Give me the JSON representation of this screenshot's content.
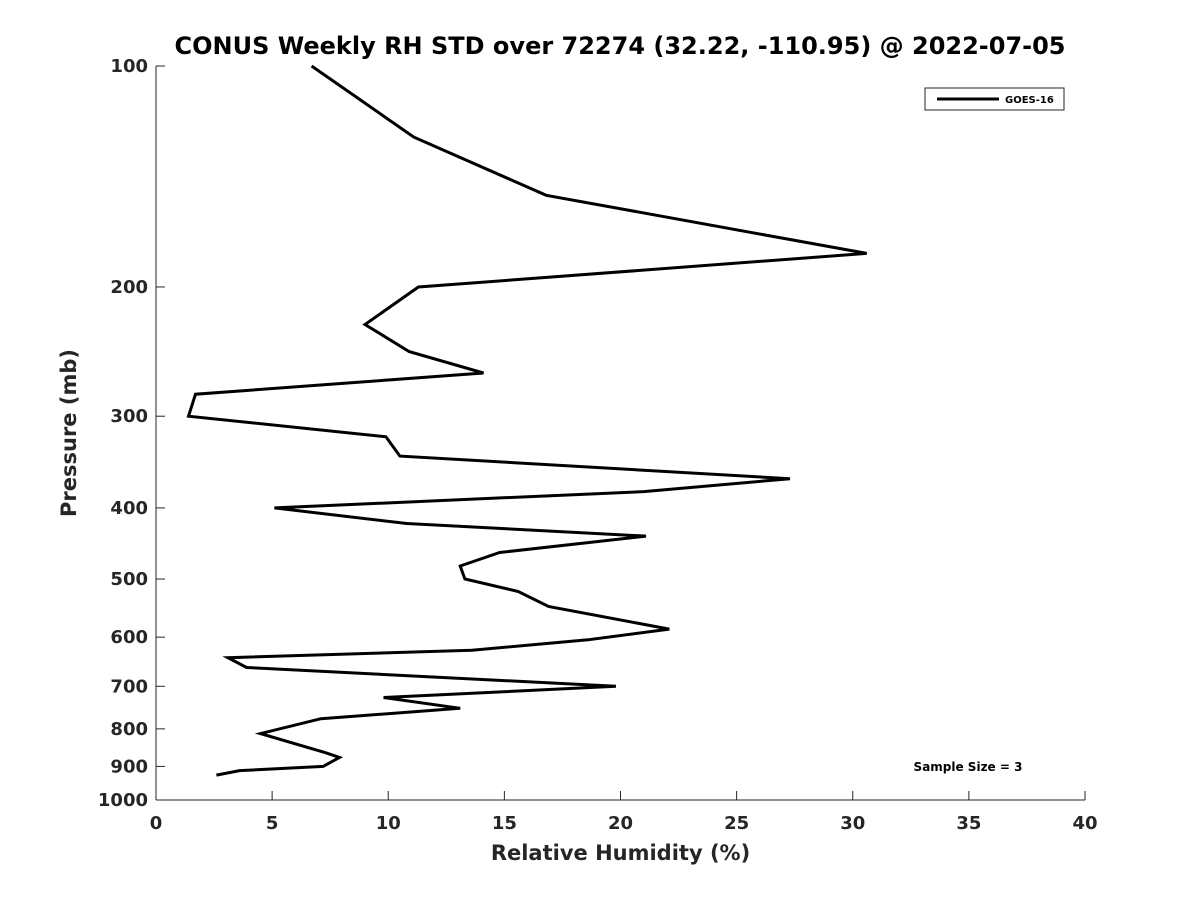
{
  "chart_data": {
    "type": "line",
    "title": "CONUS Weekly RH STD over 72274 (32.22, -110.95) @ 2022-07-05",
    "xlabel": "Relative Humidity (%)",
    "ylabel": "Pressure (mb)",
    "xlim": [
      0,
      40
    ],
    "ylim": [
      100,
      1000
    ],
    "yscale": "log",
    "y_reversed": true,
    "x_ticks": [
      0,
      5,
      10,
      15,
      20,
      25,
      30,
      35,
      40
    ],
    "y_ticks": [
      100,
      200,
      300,
      400,
      500,
      600,
      700,
      800,
      900,
      1000
    ],
    "grid": false,
    "legend": {
      "position": "top-right",
      "entries": [
        "GOES-16"
      ]
    },
    "annotations": [
      {
        "text": "Sample Size = 3",
        "position": "bottom-right"
      }
    ],
    "series": [
      {
        "name": "GOES-16",
        "color": "#000000",
        "points": [
          [
            6.7,
            100
          ],
          [
            11.1,
            125
          ],
          [
            16.8,
            150
          ],
          [
            30.6,
            180
          ],
          [
            11.3,
            200
          ],
          [
            9.0,
            225
          ],
          [
            10.9,
            245
          ],
          [
            14.1,
            262
          ],
          [
            1.7,
            280
          ],
          [
            1.4,
            300
          ],
          [
            9.9,
            320
          ],
          [
            10.5,
            340
          ],
          [
            27.3,
            365
          ],
          [
            21.0,
            380
          ],
          [
            5.1,
            400
          ],
          [
            10.8,
            420
          ],
          [
            21.1,
            437
          ],
          [
            14.8,
            460
          ],
          [
            13.1,
            480
          ],
          [
            13.3,
            500
          ],
          [
            15.6,
            520
          ],
          [
            16.9,
            545
          ],
          [
            22.1,
            585
          ],
          [
            18.6,
            605
          ],
          [
            13.6,
            625
          ],
          [
            3.1,
            640
          ],
          [
            3.9,
            660
          ],
          [
            19.8,
            700
          ],
          [
            9.8,
            725
          ],
          [
            13.1,
            750
          ],
          [
            7.1,
            775
          ],
          [
            4.5,
            812
          ],
          [
            7.3,
            862
          ],
          [
            7.9,
            875
          ],
          [
            7.2,
            900
          ],
          [
            3.6,
            912
          ],
          [
            2.6,
            925
          ]
        ]
      }
    ]
  }
}
